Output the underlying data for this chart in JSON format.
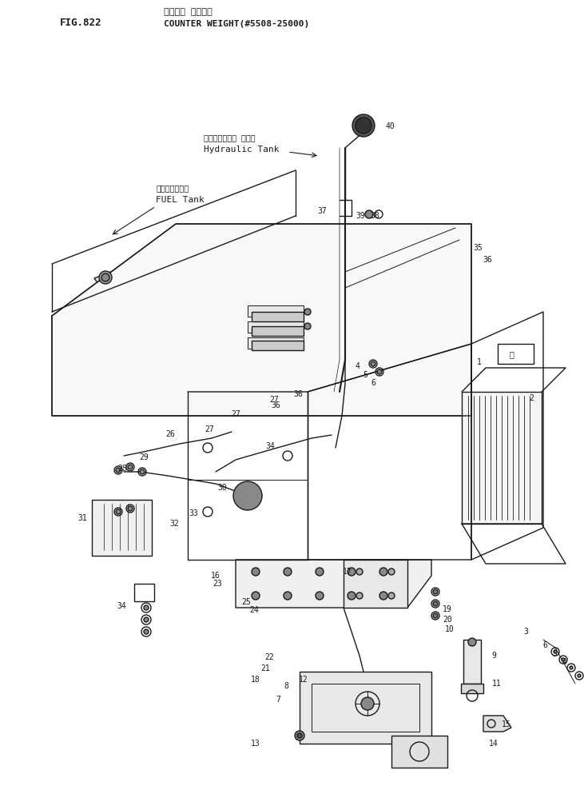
{
  "title_jp": "カウンタ ウエイト",
  "title_en": "COUNTER WEIGHT(#5508-25000)",
  "fig_number": "FIG.822",
  "bg_color": "#ffffff",
  "lc": "#1a1a1a",
  "hydraulic_label_jp": "ハイドロリック タンク",
  "hydraulic_label_en": "Hydraulic Tank",
  "fuel_label_jp": "フェエルタンク",
  "fuel_label_en": "FUEL Tank"
}
